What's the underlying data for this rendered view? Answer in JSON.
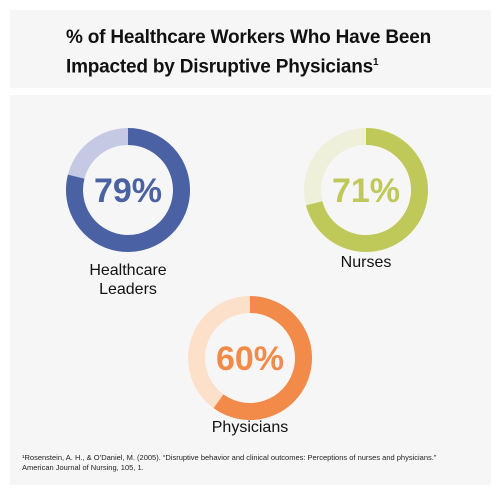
{
  "title": "% of Healthcare Workers Who Have Been Impacted by Disruptive Physicians",
  "title_note": "1",
  "footnote": "¹Rosenstein, A. H., & O’Daniel, M. (2005). “Disruptive behavior and clinical outcomes: Perceptions of nurses and physicians.” American Journal of Nursing, 105, 1.",
  "chart_data": [
    {
      "type": "donut",
      "title": "Healthcare Leaders",
      "values": [
        79
      ],
      "value_labels": [
        "79%"
      ],
      "ylim": [
        0,
        100
      ],
      "color": "#4a62a3",
      "track_color": "#c5c9e3"
    },
    {
      "type": "donut",
      "title": "Nurses",
      "values": [
        71
      ],
      "value_labels": [
        "71%"
      ],
      "ylim": [
        0,
        100
      ],
      "color": "#bfc95a",
      "track_color": "#eef0d9"
    },
    {
      "type": "donut",
      "title": "Physicians",
      "values": [
        60
      ],
      "value_labels": [
        "60%"
      ],
      "ylim": [
        0,
        100
      ],
      "color": "#f28b4a",
      "track_color": "#fde0c9"
    }
  ]
}
